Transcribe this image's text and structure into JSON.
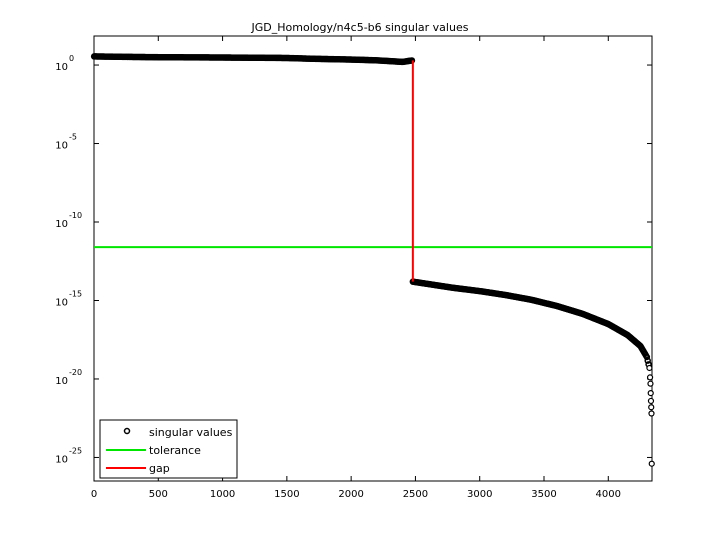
{
  "chart_data": {
    "type": "scatter",
    "title": "JGD_Homology/n4c5-b6 singular values",
    "xlabel": "",
    "ylabel": "",
    "yscale": "log",
    "xlim": [
      0,
      4340
    ],
    "ylim_exponent": [
      -26.5,
      1.85
    ],
    "x_ticks": [
      0,
      500,
      1000,
      1500,
      2000,
      2500,
      3000,
      3500,
      4000
    ],
    "y_ticks": [
      {
        "base": "10",
        "exp": "0",
        "value": 0
      },
      {
        "base": "10",
        "exp": "-5",
        "value": -5
      },
      {
        "base": "10",
        "exp": "-10",
        "value": -10
      },
      {
        "base": "10",
        "exp": "-15",
        "value": -15
      },
      {
        "base": "10",
        "exp": "-20",
        "value": -20
      },
      {
        "base": "10",
        "exp": "-25",
        "value": -25
      }
    ],
    "grid": false,
    "legend_position": "lower left",
    "series": [
      {
        "name": "singular values",
        "style": "black open circles",
        "color": "#000000",
        "points_log10": [
          [
            1,
            0.55
          ],
          [
            250,
            0.52
          ],
          [
            500,
            0.5
          ],
          [
            1000,
            0.48
          ],
          [
            1500,
            0.45
          ],
          [
            1700,
            0.4
          ],
          [
            2000,
            0.35
          ],
          [
            2200,
            0.3
          ],
          [
            2400,
            0.2
          ],
          [
            2480,
            0.3
          ],
          [
            2480,
            -13.8
          ],
          [
            2600,
            -13.95
          ],
          [
            2800,
            -14.2
          ],
          [
            3000,
            -14.4
          ],
          [
            3200,
            -14.65
          ],
          [
            3400,
            -14.95
          ],
          [
            3600,
            -15.35
          ],
          [
            3800,
            -15.85
          ],
          [
            4000,
            -16.5
          ],
          [
            4150,
            -17.2
          ],
          [
            4250,
            -17.9
          ],
          [
            4300,
            -18.6
          ],
          [
            4320,
            -19.3
          ],
          [
            4325,
            -19.9
          ],
          [
            4328,
            -20.3
          ],
          [
            4330,
            -20.9
          ],
          [
            4332,
            -21.4
          ],
          [
            4334,
            -21.8
          ],
          [
            4336,
            -22.2
          ],
          [
            4338,
            -25.4
          ]
        ]
      },
      {
        "name": "tolerance",
        "style": "green line",
        "color": "#00e600",
        "y_log10": -11.6
      },
      {
        "name": "gap",
        "style": "red line",
        "color": "#ff0000",
        "x": 2480,
        "y_log10_range": [
          0.3,
          -13.8
        ]
      }
    ],
    "legend": [
      "singular values",
      "tolerance",
      "gap"
    ]
  }
}
